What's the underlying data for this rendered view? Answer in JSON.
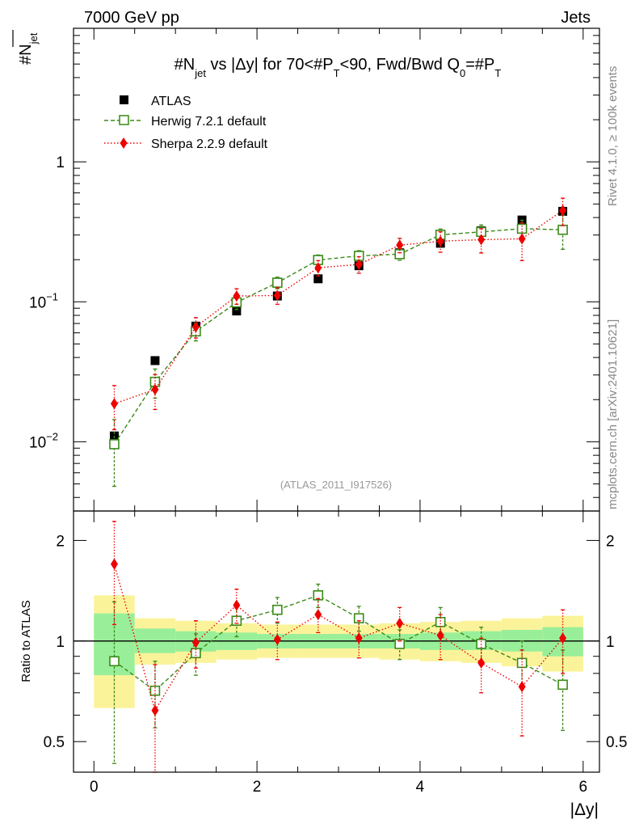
{
  "header": {
    "left": "7000 GeV pp",
    "right": "Jets"
  },
  "side_text": {
    "top": "Rivet 4.1.0, ≥ 100k events",
    "bottom": "mcplots.cern.ch [arXiv:2401.10621]"
  },
  "colors": {
    "atlas": "#000000",
    "herwig": "#3a8a17",
    "sherpa": "#ee0000",
    "band_inner": "#99ef99",
    "band_outer": "#fbf39a"
  },
  "chart_data": [
    {
      "type": "scatter",
      "panel": "main",
      "title_parts": [
        "#N",
        "jet",
        " vs |Δy| for 70<#P",
        "T",
        "<90, Fwd/Bwd Q",
        "0",
        "=#P",
        "T"
      ],
      "ylabel_parts": [
        "#N",
        "jet"
      ],
      "yscale": "log",
      "ylim": [
        0.0032,
        9
      ],
      "xlim": [
        -0.25,
        6.2
      ],
      "yticks": [
        {
          "value": 1,
          "label": "1"
        },
        {
          "value": 0.1,
          "label": "10",
          "sup": "−1"
        },
        {
          "value": 0.01,
          "label": "10",
          "sup": "−2"
        }
      ],
      "watermark": "(ATLAS_2011_I917526)",
      "x": [
        0.25,
        0.75,
        1.25,
        1.75,
        2.25,
        2.75,
        3.25,
        3.75,
        4.25,
        4.75,
        5.25,
        5.75
      ],
      "series": [
        {
          "name": "ATLAS",
          "key": "atlas",
          "values": [
            0.011,
            0.038,
            0.067,
            0.086,
            0.11,
            0.146,
            0.181,
            0.224,
            0.262,
            0.322,
            0.384,
            0.443
          ]
        },
        {
          "name": "Herwig 7.2.1 default",
          "key": "herwig",
          "values": [
            0.0096,
            0.0268,
            0.0615,
            0.099,
            0.137,
            0.199,
            0.213,
            0.219,
            0.301,
            0.316,
            0.333,
            0.327
          ],
          "err_lo": [
            0.0048,
            0.0063,
            0.009,
            0.011,
            0.013,
            0.017,
            0.019,
            0.021,
            0.03,
            0.038,
            0.05,
            0.09
          ],
          "err_hi": [
            0.0048,
            0.0063,
            0.009,
            0.011,
            0.013,
            0.017,
            0.019,
            0.021,
            0.03,
            0.038,
            0.05,
            0.09
          ]
        },
        {
          "name": "Sherpa 2.2.9 default",
          "key": "sherpa",
          "values": [
            0.0187,
            0.0236,
            0.0661,
            0.11,
            0.111,
            0.175,
            0.185,
            0.254,
            0.271,
            0.278,
            0.282,
            0.45
          ],
          "err_lo": [
            0.0065,
            0.0066,
            0.011,
            0.014,
            0.015,
            0.022,
            0.025,
            0.03,
            0.045,
            0.055,
            0.085,
            0.1
          ],
          "err_hi": [
            0.0065,
            0.0066,
            0.011,
            0.014,
            0.015,
            0.022,
            0.025,
            0.03,
            0.045,
            0.055,
            0.085,
            0.1
          ]
        }
      ],
      "legend": {
        "placement": "top-left",
        "entries": [
          "ATLAS",
          "Herwig 7.2.1 default",
          "Sherpa 2.2.9 default"
        ]
      }
    },
    {
      "type": "scatter",
      "panel": "ratio",
      "ylabel": "Ratio to ATLAS",
      "xlabel": "|Δy|",
      "yscale": "log",
      "ylim": [
        0.405,
        2.45
      ],
      "xlim": [
        -0.25,
        6.2
      ],
      "yticks": [
        {
          "value": 2,
          "label": "2"
        },
        {
          "value": 1,
          "label": "1"
        },
        {
          "value": 0.5,
          "label": "0.5"
        }
      ],
      "xticks": [
        0,
        2,
        4,
        6
      ],
      "bands": {
        "edges": [
          0,
          0.5,
          1,
          1.5,
          2,
          2.5,
          3,
          3.5,
          4,
          4.5,
          5,
          5.5,
          6
        ],
        "inner_lo": [
          0.79,
          0.92,
          0.93,
          0.94,
          0.95,
          0.95,
          0.95,
          0.95,
          0.94,
          0.94,
          0.93,
          0.9
        ],
        "inner_hi": [
          1.21,
          1.09,
          1.07,
          1.06,
          1.05,
          1.05,
          1.05,
          1.05,
          1.06,
          1.07,
          1.08,
          1.1
        ],
        "outer_lo": [
          0.63,
          0.85,
          0.86,
          0.88,
          0.89,
          0.89,
          0.89,
          0.88,
          0.87,
          0.86,
          0.84,
          0.81
        ],
        "outer_hi": [
          1.37,
          1.17,
          1.15,
          1.13,
          1.12,
          1.12,
          1.12,
          1.13,
          1.14,
          1.15,
          1.17,
          1.19
        ]
      },
      "x": [
        0.25,
        0.75,
        1.25,
        1.75,
        2.25,
        2.75,
        3.25,
        3.75,
        4.25,
        4.75,
        5.25,
        5.75
      ],
      "series": [
        {
          "name": "Herwig 7.2.1 default",
          "key": "herwig",
          "values": [
            0.87,
            0.71,
            0.92,
            1.15,
            1.24,
            1.37,
            1.17,
            0.98,
            1.14,
            0.98,
            0.86,
            0.74
          ],
          "err_lo": [
            0.44,
            0.16,
            0.13,
            0.12,
            0.11,
            0.11,
            0.1,
            0.1,
            0.12,
            0.12,
            0.14,
            0.2
          ],
          "err_hi": [
            0.44,
            0.16,
            0.13,
            0.12,
            0.11,
            0.11,
            0.1,
            0.1,
            0.12,
            0.12,
            0.14,
            0.2
          ]
        },
        {
          "name": "Sherpa 2.2.9 default",
          "key": "sherpa",
          "values": [
            1.7,
            0.62,
            0.99,
            1.28,
            1.01,
            1.2,
            1.02,
            1.13,
            1.04,
            0.86,
            0.73,
            1.02
          ],
          "err_lo": [
            0.58,
            0.23,
            0.16,
            0.15,
            0.13,
            0.14,
            0.13,
            0.13,
            0.16,
            0.16,
            0.21,
            0.22
          ],
          "err_hi": [
            0.58,
            0.23,
            0.16,
            0.15,
            0.13,
            0.14,
            0.13,
            0.13,
            0.16,
            0.16,
            0.21,
            0.22
          ]
        }
      ]
    }
  ]
}
